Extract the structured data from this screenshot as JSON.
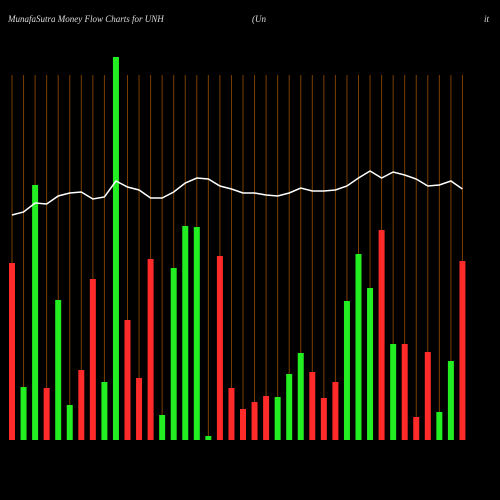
{
  "chart_data": {
    "type": "bar",
    "title": "MunafaSutra  Money Flow  Charts for UNH",
    "subtitle_left": "(Un",
    "subtitle_right": "it",
    "values": [
      177,
      53,
      255,
      52,
      140,
      35,
      70,
      161,
      58,
      383,
      120,
      62,
      181,
      25,
      172,
      214,
      213,
      4,
      184,
      52,
      31,
      38,
      44,
      43,
      66,
      87,
      68,
      42,
      58,
      139,
      186,
      152,
      210,
      96,
      96,
      23,
      88,
      28,
      79,
      179
    ],
    "colors": [
      "#ff2a2a",
      "#22ee22",
      "#22ee22",
      "#ff2a2a",
      "#22ee22",
      "#22ee22",
      "#ff2a2a",
      "#ff2a2a",
      "#22ee22",
      "#22ee22",
      "#ff2a2a",
      "#ff2a2a",
      "#ff2a2a",
      "#22ee22",
      "#22ee22",
      "#22ee22",
      "#22ee22",
      "#22ee22",
      "#ff2a2a",
      "#ff2a2a",
      "#ff2a2a",
      "#ff2a2a",
      "#ff2a2a",
      "#22ee22",
      "#22ee22",
      "#22ee22",
      "#ff2a2a",
      "#ff2a2a",
      "#ff2a2a",
      "#22ee22",
      "#22ee22",
      "#22ee22",
      "#ff2a2a",
      "#22ee22",
      "#ff2a2a",
      "#ff2a2a",
      "#ff2a2a",
      "#22ee22",
      "#22ee22",
      "#ff2a2a"
    ],
    "line": {
      "color": "#ffffff",
      "values": [
        225,
        228,
        237,
        236,
        244,
        247,
        248,
        241,
        243,
        259,
        253,
        250,
        242,
        242,
        248,
        257,
        262,
        261,
        254,
        251,
        247,
        247,
        245,
        244,
        247,
        252,
        249,
        249,
        250,
        254,
        262,
        269,
        262,
        268,
        265,
        261,
        254,
        255,
        259,
        251
      ]
    },
    "ylim": [
      0,
      440
    ],
    "grid_color": "#7a3f00"
  }
}
